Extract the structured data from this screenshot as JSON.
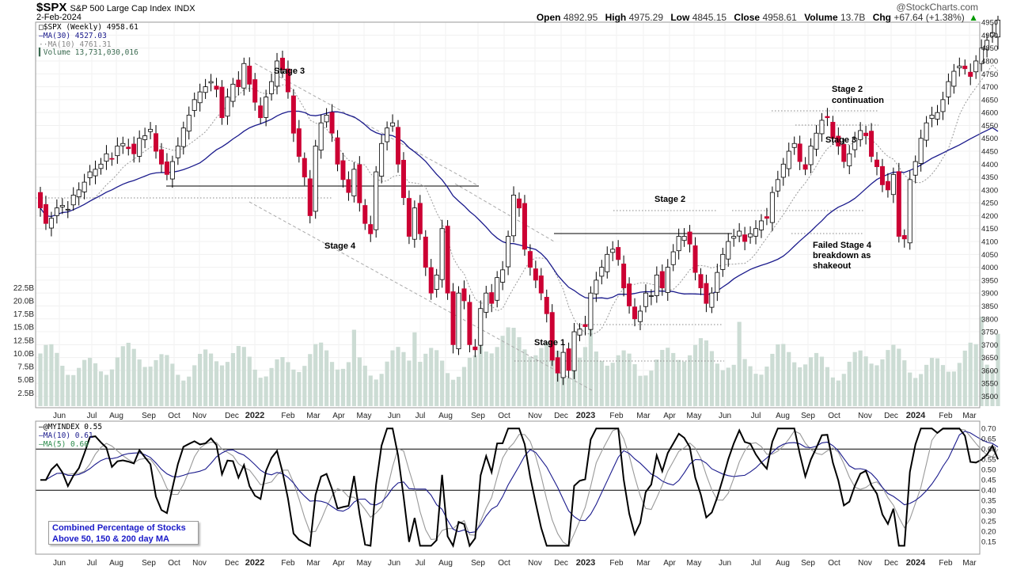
{
  "header": {
    "symbol": "$SPX",
    "name": "S&P 500 Large Cap Index",
    "exchange": "INDX",
    "date": "2-Feb-2024",
    "watermark": "@StockCharts.com",
    "open_label": "Open",
    "open": "4892.95",
    "high_label": "High",
    "high": "4975.29",
    "low_label": "Low",
    "low": "4845.15",
    "close_label": "Close",
    "close": "4958.61",
    "volume_label": "Volume",
    "volume": "13.7B",
    "chg_label": "Chg",
    "chg": "+67.64 (+1.38%)",
    "chg_icon": "triangle-up-icon"
  },
  "legend": {
    "price": "$SPX (Weekly) 4958.61",
    "ma30": "MA(30) 4527.03",
    "ma10": "MA(10) 4761.31",
    "volume": "Volume 13,731,030,016",
    "ind": "@MYINDEX 0.55",
    "ind_ma10": "MA(10) 0.61",
    "ind_ma5": "MA(5) 0.60"
  },
  "indicator_note": {
    "line1": "Combined Percentage of Stocks",
    "line2": "Above 50, 150 & 200 day MA"
  },
  "colors": {
    "up": "#ffffff",
    "down": "#cc0033",
    "ma30": "#1a1a8c",
    "ma10": "#999999",
    "volume": "#ccdcd4",
    "ind_ma10": "#1a1a8c",
    "ind_ma5": "#999999"
  },
  "chart_data": [
    {
      "type": "candlestick",
      "title": "$SPX S&P 500 Large Cap Index INDX",
      "x_tick_labels": [
        "Jun",
        "Jul",
        "Aug",
        "Sep",
        "Oct",
        "Nov",
        "Dec",
        "2022",
        "Feb",
        "Mar",
        "Apr",
        "May",
        "Jun",
        "Jul",
        "Aug",
        "Sep",
        "Oct",
        "Nov",
        "Dec",
        "2023",
        "Feb",
        "Mar",
        "Apr",
        "May",
        "Jun",
        "Jul",
        "Aug",
        "Sep",
        "Oct",
        "Nov",
        "Dec",
        "2024",
        "Feb",
        "Mar"
      ],
      "y_ticks": [
        3500,
        3550,
        3600,
        3650,
        3700,
        3750,
        3800,
        3850,
        3900,
        3950,
        4000,
        4050,
        4100,
        4150,
        4200,
        4250,
        4300,
        4350,
        4400,
        4450,
        4500,
        4550,
        4600,
        4650,
        4700,
        4750,
        4800,
        4850,
        4900,
        4950
      ],
      "ylim": [
        3480,
        4975
      ],
      "weekly_close": [
        4230,
        4170,
        4190,
        4230,
        4240,
        4225,
        4280,
        4300,
        4330,
        4370,
        4380,
        4400,
        4440,
        4420,
        4470,
        4480,
        4460,
        4440,
        4500,
        4510,
        4535,
        4450,
        4400,
        4360,
        4410,
        4470,
        4540,
        4590,
        4650,
        4680,
        4700,
        4720,
        4690,
        4580,
        4660,
        4710,
        4700,
        4790,
        4710,
        4640,
        4580,
        4660,
        4720,
        4800,
        4766,
        4680,
        4520,
        4430,
        4350,
        4200,
        4470,
        4560,
        4590,
        4520,
        4400,
        4340,
        4290,
        4380,
        4250,
        4170,
        4130,
        4370,
        4480,
        4540,
        4560,
        4400,
        4270,
        4120,
        4230,
        4130,
        4000,
        3900,
        3970,
        4150,
        3900,
        3700,
        3900,
        3870,
        3700,
        3680,
        3840,
        3900,
        3860,
        3960,
        3990,
        4120,
        4280,
        4230,
        4070,
        4000,
        3950,
        3900,
        3820,
        3640,
        3590,
        3670,
        3600,
        3750,
        3760,
        3770,
        3900,
        3950,
        4000,
        4050,
        4070,
        4030,
        3920,
        3850,
        3800,
        3830,
        3900,
        3890,
        3970,
        3920,
        4000,
        4060,
        4120,
        4120,
        4090,
        3980,
        3920,
        3860,
        3900,
        3980,
        4050,
        4100,
        4120,
        4140,
        4100,
        4130,
        4150,
        4180,
        4190,
        4290,
        4340,
        4400,
        4450,
        4480,
        4410,
        4380,
        4470,
        4520,
        4570,
        4580,
        4500,
        4470,
        4410,
        4440,
        4500,
        4530,
        4510,
        4430,
        4390,
        4320,
        4300,
        4360,
        4120,
        4110,
        4340,
        4410,
        4500,
        4560,
        4590,
        4600,
        4650,
        4720,
        4760,
        4780,
        4770,
        4740,
        4800,
        4850,
        4880,
        4910,
        4958.61
      ],
      "moving_averages": [
        {
          "name": "MA(30)",
          "value": 4527.03
        },
        {
          "name": "MA(10)",
          "value": 4761.31
        }
      ],
      "annotations": [
        "Stage 3",
        "Stage 4",
        "Stage 1",
        "Stage 2",
        "Stage 3",
        "Stage 2 continuation",
        "Failed Stage 4 breakdown as shakeout"
      ]
    },
    {
      "type": "bar",
      "title": "Volume",
      "y_tick_labels": [
        "2.5B",
        "5.0B",
        "7.5B",
        "10.0B",
        "12.5B",
        "15.0B",
        "17.5B",
        "20.0B",
        "22.5B"
      ],
      "ylim": [
        0,
        23
      ],
      "latest_value": 13.73
    },
    {
      "type": "line",
      "title": "@MYINDEX",
      "y_ticks": [
        0.15,
        0.2,
        0.25,
        0.3,
        0.35,
        0.4,
        0.45,
        0.5,
        0.55,
        0.6,
        0.65,
        0.7
      ],
      "ylim": [
        0.12,
        0.72
      ],
      "reference_lines": [
        0.4,
        0.6
      ],
      "series": [
        {
          "name": "@MYINDEX",
          "last": 0.55
        },
        {
          "name": "MA(10)",
          "last": 0.61
        },
        {
          "name": "MA(5)",
          "last": 0.6
        }
      ]
    }
  ]
}
